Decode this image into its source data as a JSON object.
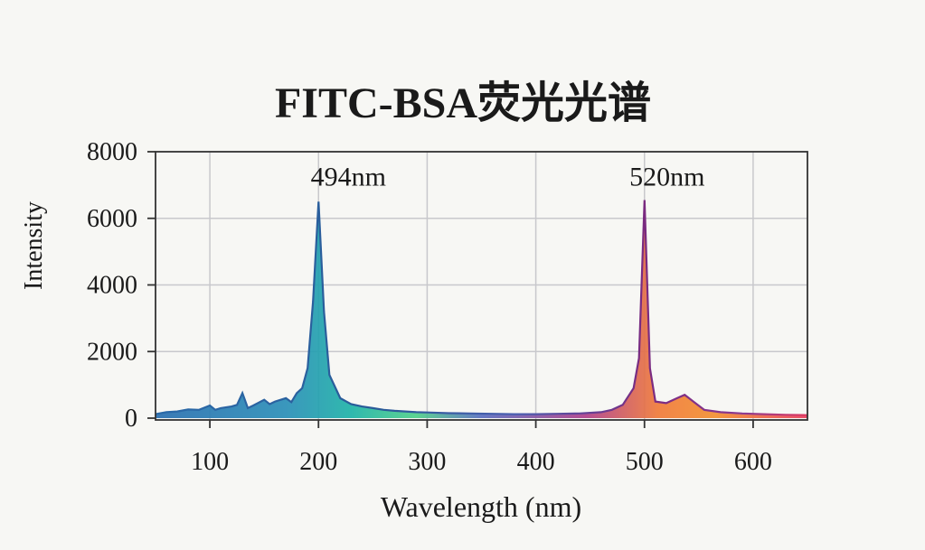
{
  "chart_data": {
    "type": "area",
    "title": "FITC-BSA荧光光谱",
    "xlabel": "Wavelength (nm)",
    "ylabel": "Intensity",
    "xlim": [
      50,
      650
    ],
    "ylim": [
      0,
      8000
    ],
    "xticks": [
      100,
      200,
      300,
      400,
      500,
      600
    ],
    "yticks": [
      0,
      2000,
      4000,
      6000,
      8000
    ],
    "grid": true,
    "annotations": [
      {
        "text": "494nm",
        "x": 200,
        "y": 7200
      },
      {
        "text": "520nm",
        "x": 500,
        "y": 7200
      }
    ],
    "series": [
      {
        "x": [
          50,
          60,
          70,
          80,
          90,
          100,
          105,
          110,
          120,
          125,
          130,
          135,
          140,
          150,
          155,
          160,
          170,
          175,
          180,
          185,
          190,
          195,
          200,
          205,
          210,
          220,
          230,
          240,
          250,
          260,
          270,
          280,
          290,
          300,
          320,
          340,
          360,
          380,
          400,
          420,
          440,
          460,
          470,
          480,
          490,
          495,
          500,
          505,
          510,
          520,
          530,
          537,
          545,
          555,
          570,
          590,
          610,
          630,
          650
        ],
        "y": [
          120,
          180,
          200,
          260,
          250,
          380,
          250,
          300,
          350,
          400,
          750,
          300,
          380,
          550,
          420,
          500,
          600,
          480,
          750,
          900,
          1500,
          3500,
          6500,
          3200,
          1300,
          600,
          420,
          350,
          300,
          250,
          220,
          200,
          180,
          170,
          150,
          140,
          130,
          120,
          120,
          130,
          140,
          180,
          250,
          400,
          900,
          1800,
          6550,
          1500,
          500,
          450,
          600,
          700,
          500,
          250,
          180,
          140,
          120,
          100,
          90
        ]
      }
    ],
    "colors": [
      "#2a6fb0",
      "#1fb3a8",
      "#4fd08a",
      "#5a6fc0",
      "#b0408a",
      "#f07a3a",
      "#f39030",
      "#e84060"
    ]
  }
}
